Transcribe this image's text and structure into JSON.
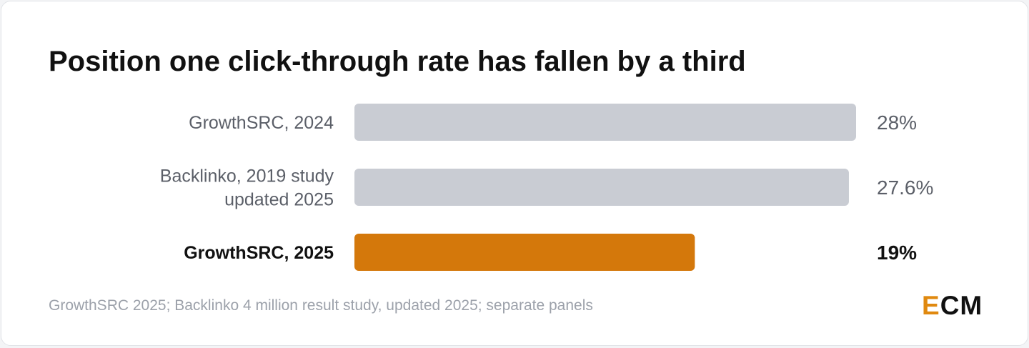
{
  "chart_data": {
    "type": "bar",
    "orientation": "horizontal",
    "title": "Position one click‑through rate has fallen by a third",
    "categories": [
      [
        "GrowthSRC, 2024"
      ],
      [
        "Backlinko, 2019 study",
        "updated 2025"
      ],
      [
        "GrowthSRC, 2025"
      ]
    ],
    "values": [
      28,
      27.6,
      19
    ],
    "value_labels": [
      "28%",
      "27.6%",
      "19%"
    ],
    "highlighted": [
      false,
      false,
      true
    ],
    "xlim": [
      0,
      28
    ],
    "colors": {
      "default": "#c9ccd3",
      "highlight": "#d4780b"
    },
    "grid": false
  },
  "footer": {
    "source": "GrowthSRC 2025; Backlinko 4 million result study, updated 2025; separate panels",
    "logo_accent": "E",
    "logo_rest": "CM"
  }
}
